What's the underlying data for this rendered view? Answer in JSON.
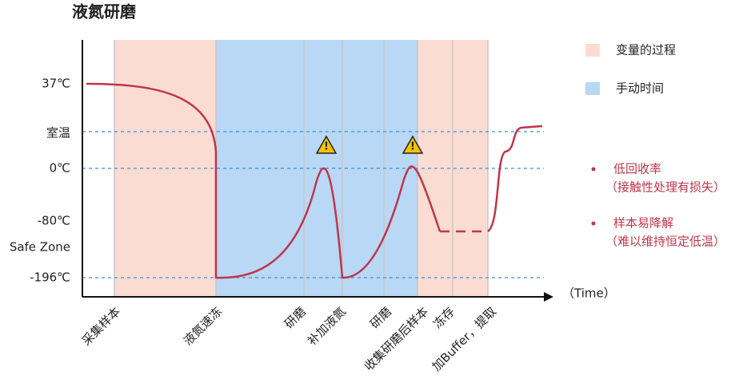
{
  "title": "液氮研磨",
  "y_labels": [
    "37℃",
    "室温",
    "0℃",
    "-80℃",
    "Safe Zone",
    "-196℃"
  ],
  "x_labels": [
    "采集样本",
    "液氮速冻",
    "研磨",
    "补加液氮",
    "研磨",
    "收集研磨后样本",
    "冻存",
    "加Buffer，提取"
  ],
  "axis_label": "（Time）",
  "legend": [
    "变量的过程",
    "手动时间"
  ],
  "notes": [
    {
      "title": "低回收率",
      "detail": "（接触性处理有损失）"
    },
    {
      "title": "样本易降解",
      "detail": "（难以维持恒定低温）"
    }
  ]
}
